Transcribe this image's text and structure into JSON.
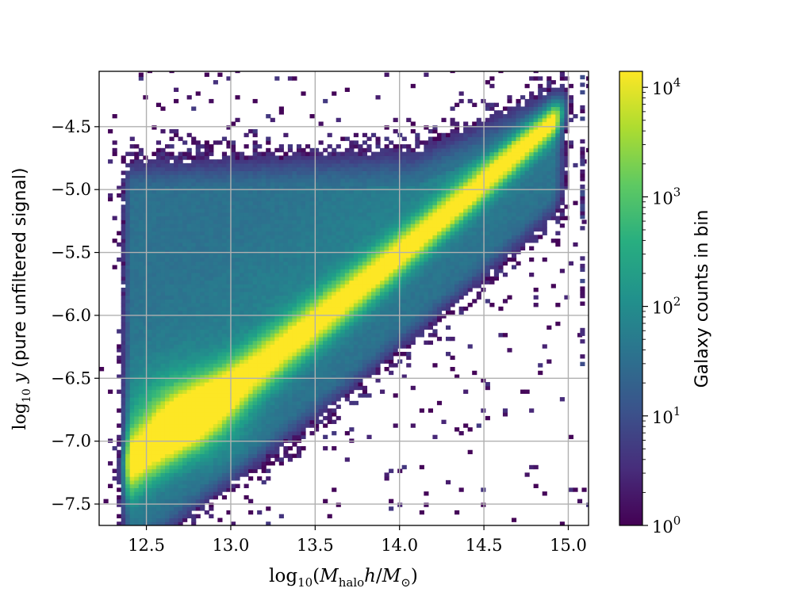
{
  "chart_data": {
    "type": "heatmap",
    "title": "",
    "xlabel": "log10(Mhalo h/M⊙)",
    "ylabel": "log10 y (pure unfiltered signal)",
    "xlim": [
      12.22,
      15.12
    ],
    "ylim": [
      -7.67,
      -4.06
    ],
    "xticks": [
      12.5,
      13.0,
      13.5,
      14.0,
      14.5,
      15.0
    ],
    "xtick_labels": [
      "12.5",
      "13.0",
      "13.5",
      "14.0",
      "14.5",
      "15.0"
    ],
    "yticks": [
      -4.5,
      -5.0,
      -5.5,
      -6.0,
      -6.5,
      -7.0,
      -7.5
    ],
    "ytick_labels": [
      "−4.5",
      "−5.0",
      "−5.5",
      "−6.0",
      "−6.5",
      "−7.0",
      "−7.5"
    ],
    "grid": true,
    "colormap": "viridis",
    "colorbar": {
      "label": "Galaxy counts in bin",
      "scale": "log",
      "range": [
        1,
        14000
      ],
      "tick_exponents": [
        0,
        1,
        2,
        3,
        4
      ]
    },
    "density_model": {
      "description_of_features": "2D histogram counts per bin (log scale). Main diagonal ridge from about (12.6,-7.0) to (14.8,-4.8); bright peak near (12.75,-6.75); broad envelope spanning y from about -5.0 to -7.5 at low mass.",
      "peak_bin": {
        "x": 12.75,
        "y": -6.75,
        "counts": 14000
      },
      "ridge": [
        {
          "x": 12.6,
          "y": -6.95
        },
        {
          "x": 13.0,
          "y": -6.6
        },
        {
          "x": 13.5,
          "y": -6.15
        },
        {
          "x": 14.0,
          "y": -5.6
        },
        {
          "x": 14.5,
          "y": -5.1
        },
        {
          "x": 14.9,
          "y": -4.75
        }
      ]
    }
  }
}
